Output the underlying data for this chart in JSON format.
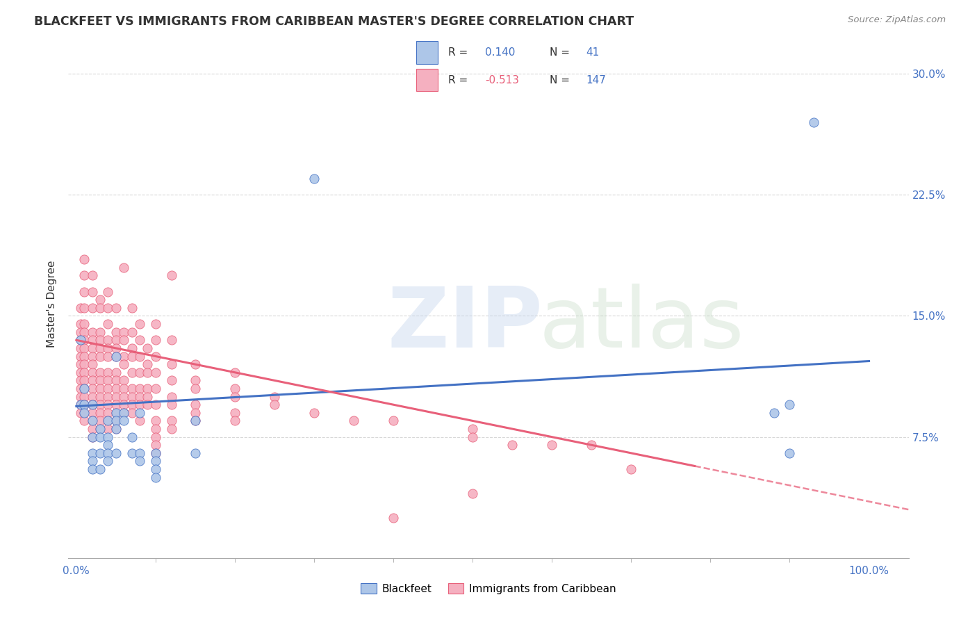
{
  "title": "BLACKFEET VS IMMIGRANTS FROM CARIBBEAN MASTER'S DEGREE CORRELATION CHART",
  "source": "Source: ZipAtlas.com",
  "ylabel": "Master's Degree",
  "yticks": [
    "7.5%",
    "15.0%",
    "22.5%",
    "30.0%"
  ],
  "ytick_values": [
    0.075,
    0.15,
    0.225,
    0.3
  ],
  "blue_color": "#adc6e8",
  "pink_color": "#f5b0c0",
  "line_blue": "#4472c4",
  "line_pink": "#e8607a",
  "blue_scatter": [
    [
      0.005,
      0.135
    ],
    [
      0.005,
      0.095
    ],
    [
      0.01,
      0.105
    ],
    [
      0.01,
      0.095
    ],
    [
      0.01,
      0.09
    ],
    [
      0.02,
      0.075
    ],
    [
      0.02,
      0.065
    ],
    [
      0.02,
      0.06
    ],
    [
      0.02,
      0.055
    ],
    [
      0.02,
      0.085
    ],
    [
      0.02,
      0.095
    ],
    [
      0.03,
      0.08
    ],
    [
      0.03,
      0.075
    ],
    [
      0.03,
      0.065
    ],
    [
      0.03,
      0.055
    ],
    [
      0.04,
      0.085
    ],
    [
      0.04,
      0.075
    ],
    [
      0.04,
      0.07
    ],
    [
      0.04,
      0.065
    ],
    [
      0.04,
      0.06
    ],
    [
      0.05,
      0.09
    ],
    [
      0.05,
      0.085
    ],
    [
      0.05,
      0.08
    ],
    [
      0.05,
      0.125
    ],
    [
      0.05,
      0.065
    ],
    [
      0.06,
      0.09
    ],
    [
      0.06,
      0.085
    ],
    [
      0.07,
      0.075
    ],
    [
      0.07,
      0.065
    ],
    [
      0.08,
      0.09
    ],
    [
      0.08,
      0.065
    ],
    [
      0.08,
      0.06
    ],
    [
      0.1,
      0.065
    ],
    [
      0.1,
      0.06
    ],
    [
      0.1,
      0.055
    ],
    [
      0.1,
      0.05
    ],
    [
      0.15,
      0.085
    ],
    [
      0.15,
      0.065
    ],
    [
      0.3,
      0.235
    ],
    [
      0.88,
      0.09
    ],
    [
      0.9,
      0.095
    ],
    [
      0.9,
      0.065
    ],
    [
      0.93,
      0.27
    ]
  ],
  "pink_scatter": [
    [
      0.005,
      0.155
    ],
    [
      0.005,
      0.145
    ],
    [
      0.005,
      0.14
    ],
    [
      0.005,
      0.135
    ],
    [
      0.005,
      0.13
    ],
    [
      0.005,
      0.125
    ],
    [
      0.005,
      0.12
    ],
    [
      0.005,
      0.115
    ],
    [
      0.005,
      0.11
    ],
    [
      0.005,
      0.105
    ],
    [
      0.005,
      0.1
    ],
    [
      0.005,
      0.095
    ],
    [
      0.005,
      0.09
    ],
    [
      0.01,
      0.185
    ],
    [
      0.01,
      0.175
    ],
    [
      0.01,
      0.165
    ],
    [
      0.01,
      0.155
    ],
    [
      0.01,
      0.145
    ],
    [
      0.01,
      0.14
    ],
    [
      0.01,
      0.135
    ],
    [
      0.01,
      0.13
    ],
    [
      0.01,
      0.125
    ],
    [
      0.01,
      0.12
    ],
    [
      0.01,
      0.115
    ],
    [
      0.01,
      0.11
    ],
    [
      0.01,
      0.105
    ],
    [
      0.01,
      0.1
    ],
    [
      0.01,
      0.095
    ],
    [
      0.01,
      0.09
    ],
    [
      0.01,
      0.085
    ],
    [
      0.02,
      0.175
    ],
    [
      0.02,
      0.165
    ],
    [
      0.02,
      0.155
    ],
    [
      0.02,
      0.14
    ],
    [
      0.02,
      0.135
    ],
    [
      0.02,
      0.13
    ],
    [
      0.02,
      0.125
    ],
    [
      0.02,
      0.12
    ],
    [
      0.02,
      0.115
    ],
    [
      0.02,
      0.11
    ],
    [
      0.02,
      0.105
    ],
    [
      0.02,
      0.1
    ],
    [
      0.02,
      0.095
    ],
    [
      0.02,
      0.09
    ],
    [
      0.02,
      0.085
    ],
    [
      0.02,
      0.08
    ],
    [
      0.02,
      0.075
    ],
    [
      0.03,
      0.16
    ],
    [
      0.03,
      0.155
    ],
    [
      0.03,
      0.14
    ],
    [
      0.03,
      0.135
    ],
    [
      0.03,
      0.13
    ],
    [
      0.03,
      0.125
    ],
    [
      0.03,
      0.115
    ],
    [
      0.03,
      0.11
    ],
    [
      0.03,
      0.105
    ],
    [
      0.03,
      0.1
    ],
    [
      0.03,
      0.095
    ],
    [
      0.03,
      0.09
    ],
    [
      0.03,
      0.085
    ],
    [
      0.03,
      0.08
    ],
    [
      0.04,
      0.165
    ],
    [
      0.04,
      0.155
    ],
    [
      0.04,
      0.145
    ],
    [
      0.04,
      0.135
    ],
    [
      0.04,
      0.13
    ],
    [
      0.04,
      0.125
    ],
    [
      0.04,
      0.115
    ],
    [
      0.04,
      0.11
    ],
    [
      0.04,
      0.105
    ],
    [
      0.04,
      0.1
    ],
    [
      0.04,
      0.095
    ],
    [
      0.04,
      0.09
    ],
    [
      0.04,
      0.085
    ],
    [
      0.04,
      0.08
    ],
    [
      0.05,
      0.155
    ],
    [
      0.05,
      0.14
    ],
    [
      0.05,
      0.135
    ],
    [
      0.05,
      0.13
    ],
    [
      0.05,
      0.125
    ],
    [
      0.05,
      0.115
    ],
    [
      0.05,
      0.11
    ],
    [
      0.05,
      0.105
    ],
    [
      0.05,
      0.1
    ],
    [
      0.05,
      0.095
    ],
    [
      0.05,
      0.09
    ],
    [
      0.05,
      0.085
    ],
    [
      0.05,
      0.08
    ],
    [
      0.06,
      0.18
    ],
    [
      0.06,
      0.14
    ],
    [
      0.06,
      0.135
    ],
    [
      0.06,
      0.125
    ],
    [
      0.06,
      0.12
    ],
    [
      0.06,
      0.11
    ],
    [
      0.06,
      0.105
    ],
    [
      0.06,
      0.1
    ],
    [
      0.06,
      0.095
    ],
    [
      0.06,
      0.09
    ],
    [
      0.07,
      0.155
    ],
    [
      0.07,
      0.14
    ],
    [
      0.07,
      0.13
    ],
    [
      0.07,
      0.125
    ],
    [
      0.07,
      0.115
    ],
    [
      0.07,
      0.105
    ],
    [
      0.07,
      0.1
    ],
    [
      0.07,
      0.095
    ],
    [
      0.07,
      0.09
    ],
    [
      0.08,
      0.145
    ],
    [
      0.08,
      0.135
    ],
    [
      0.08,
      0.125
    ],
    [
      0.08,
      0.115
    ],
    [
      0.08,
      0.105
    ],
    [
      0.08,
      0.1
    ],
    [
      0.08,
      0.095
    ],
    [
      0.08,
      0.085
    ],
    [
      0.09,
      0.13
    ],
    [
      0.09,
      0.12
    ],
    [
      0.09,
      0.115
    ],
    [
      0.09,
      0.105
    ],
    [
      0.09,
      0.1
    ],
    [
      0.09,
      0.095
    ],
    [
      0.1,
      0.145
    ],
    [
      0.1,
      0.135
    ],
    [
      0.1,
      0.125
    ],
    [
      0.1,
      0.115
    ],
    [
      0.1,
      0.105
    ],
    [
      0.1,
      0.095
    ],
    [
      0.1,
      0.085
    ],
    [
      0.1,
      0.08
    ],
    [
      0.1,
      0.075
    ],
    [
      0.1,
      0.07
    ],
    [
      0.1,
      0.065
    ],
    [
      0.12,
      0.175
    ],
    [
      0.12,
      0.135
    ],
    [
      0.12,
      0.12
    ],
    [
      0.12,
      0.11
    ],
    [
      0.12,
      0.1
    ],
    [
      0.12,
      0.095
    ],
    [
      0.12,
      0.085
    ],
    [
      0.12,
      0.08
    ],
    [
      0.15,
      0.12
    ],
    [
      0.15,
      0.11
    ],
    [
      0.15,
      0.105
    ],
    [
      0.15,
      0.095
    ],
    [
      0.15,
      0.09
    ],
    [
      0.15,
      0.085
    ],
    [
      0.2,
      0.115
    ],
    [
      0.2,
      0.105
    ],
    [
      0.2,
      0.1
    ],
    [
      0.2,
      0.09
    ],
    [
      0.2,
      0.085
    ],
    [
      0.25,
      0.1
    ],
    [
      0.25,
      0.095
    ],
    [
      0.3,
      0.09
    ],
    [
      0.35,
      0.085
    ],
    [
      0.4,
      0.085
    ],
    [
      0.5,
      0.08
    ],
    [
      0.5,
      0.075
    ],
    [
      0.5,
      0.04
    ],
    [
      0.55,
      0.07
    ],
    [
      0.6,
      0.07
    ],
    [
      0.65,
      0.07
    ],
    [
      0.7,
      0.055
    ],
    [
      0.4,
      0.025
    ]
  ],
  "blue_line": {
    "x0": 0.0,
    "y0": 0.094,
    "x1": 1.0,
    "y1": 0.122
  },
  "pink_line_solid": {
    "x0": 0.0,
    "y0": 0.135,
    "x1": 0.78,
    "y1": 0.057
  },
  "pink_line_dashed": {
    "x0": 0.78,
    "y0": 0.057,
    "x1": 1.05,
    "y1": 0.03
  },
  "xlim": [
    -0.01,
    1.05
  ],
  "ylim": [
    0.0,
    0.315
  ],
  "background_color": "#ffffff",
  "grid_color": "#d8d8d8",
  "text_dark": "#333333",
  "text_gray": "#888888"
}
